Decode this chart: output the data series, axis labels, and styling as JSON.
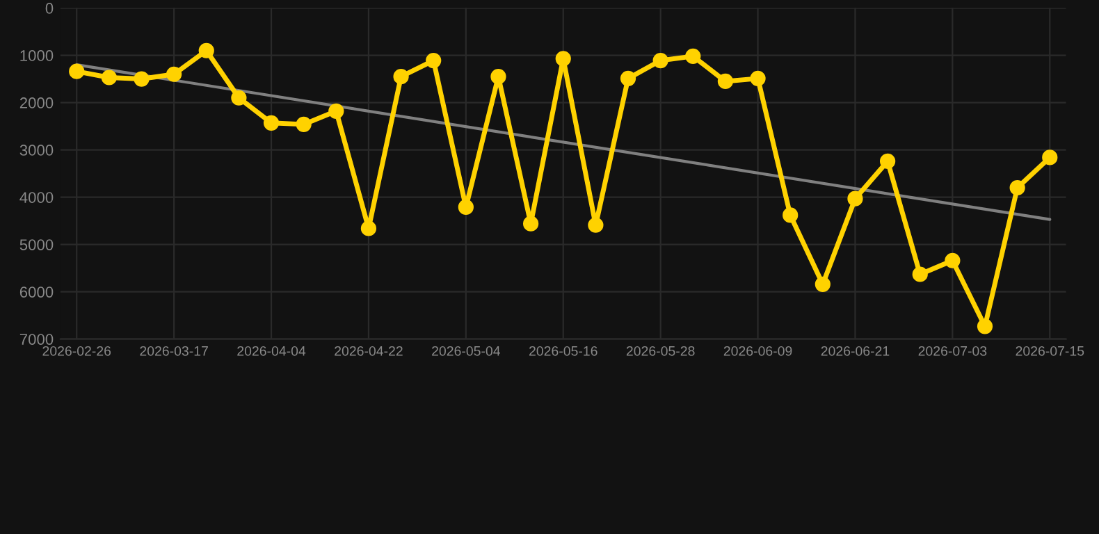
{
  "chart_data": {
    "type": "line",
    "categories": [
      "2026-02-26",
      null,
      null,
      "2026-03-17",
      null,
      null,
      "2026-04-04",
      null,
      null,
      "2026-04-22",
      null,
      null,
      "2026-05-04",
      null,
      null,
      "2026-05-16",
      null,
      null,
      "2026-05-28",
      null,
      null,
      "2026-06-09",
      null,
      null,
      "2026-06-21",
      null,
      null,
      "2026-07-03",
      null,
      null,
      "2026-07-15"
    ],
    "series": [
      {
        "color": "#ffd200",
        "marker": "circle",
        "values": [
          1340,
          1470,
          1500,
          1400,
          900,
          1900,
          2430,
          2460,
          2180,
          4660,
          1450,
          1110,
          4210,
          1450,
          4560,
          1070,
          4590,
          1490,
          1110,
          1020,
          1550,
          1490,
          4380,
          5840,
          4030,
          3240,
          5630,
          5340,
          6730,
          3800,
          3160
        ]
      },
      {
        "type": "line",
        "color": "#808080",
        "marker": "none",
        "values": [
          1200,
          null,
          null,
          null,
          null,
          null,
          null,
          null,
          null,
          null,
          null,
          null,
          null,
          null,
          null,
          null,
          null,
          null,
          null,
          null,
          null,
          null,
          null,
          null,
          null,
          null,
          null,
          null,
          null,
          null,
          4470
        ]
      }
    ],
    "ylim": [
      7000,
      0
    ],
    "yticks": [
      0,
      1000,
      2000,
      3000,
      4000,
      5000,
      6000,
      7000
    ],
    "grid": true,
    "legend": false
  }
}
